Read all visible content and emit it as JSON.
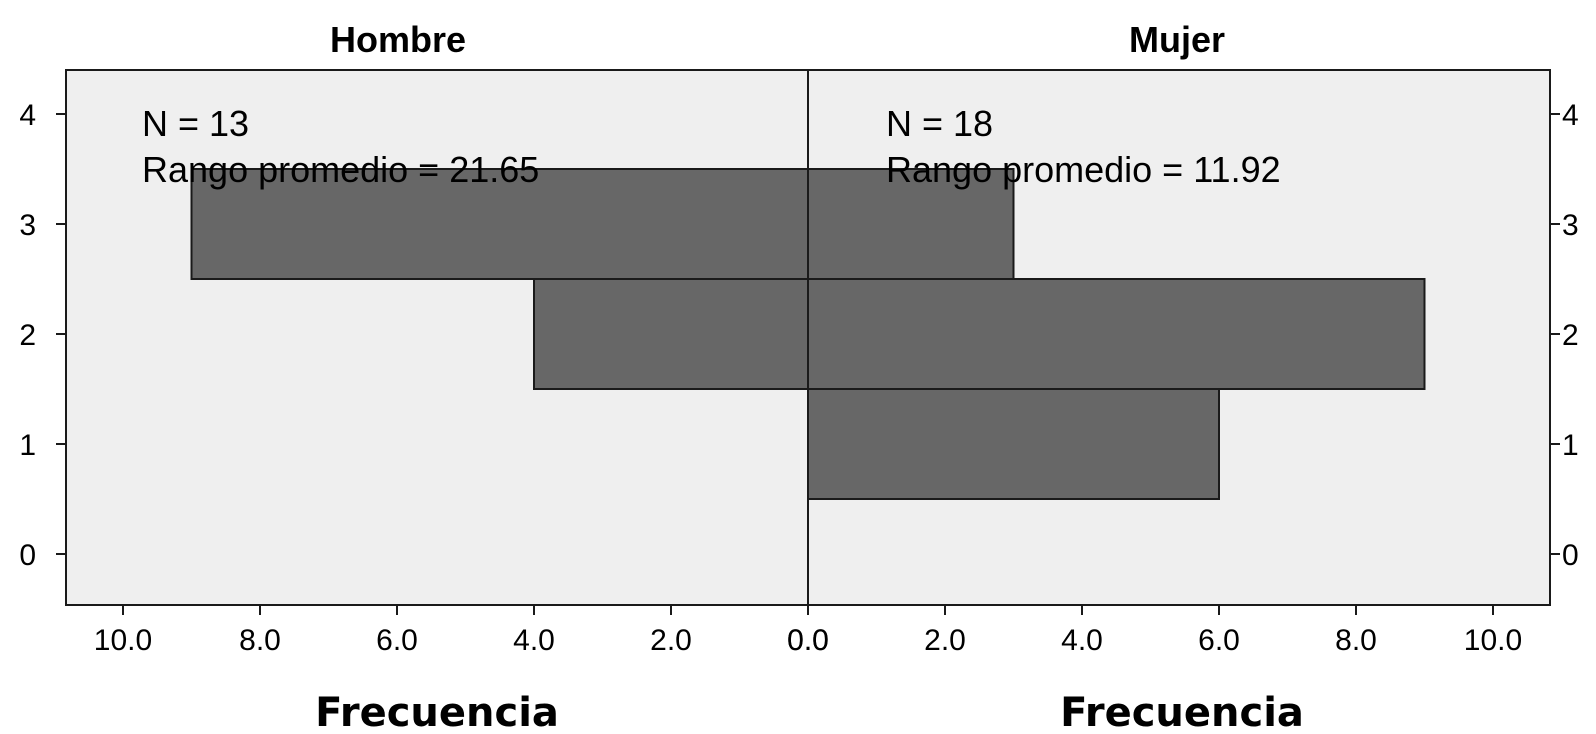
{
  "chart_data": {
    "type": "bar",
    "orientation": "horizontal-back-to-back",
    "categories": [
      "0",
      "1",
      "2",
      "3",
      "4"
    ],
    "panels": [
      {
        "title": "Hombre",
        "xlabel": "Frecuencia",
        "direction": "left",
        "xlim": [
          0,
          10
        ],
        "xticks": [
          "0.0",
          "2.0",
          "4.0",
          "6.0",
          "8.0",
          "10.0"
        ],
        "bars": [
          {
            "y": 1,
            "value": 0
          },
          {
            "y": 2,
            "value": 4
          },
          {
            "y": 3,
            "value": 9
          }
        ],
        "annotation": [
          "N = 13",
          "Rango promedio = 21.65"
        ]
      },
      {
        "title": "Mujer",
        "xlabel": "Frecuencia",
        "direction": "right",
        "xlim": [
          0,
          10
        ],
        "xticks": [
          "0.0",
          "2.0",
          "4.0",
          "6.0",
          "8.0",
          "10.0"
        ],
        "bars": [
          {
            "y": 1,
            "value": 6
          },
          {
            "y": 2,
            "value": 9
          },
          {
            "y": 3,
            "value": 3
          }
        ],
        "annotation": [
          "N = 18",
          "Rango promedio = 11.92"
        ]
      }
    ],
    "yticks": [
      "0",
      "1",
      "2",
      "3",
      "4"
    ],
    "ylim": [
      -0.45,
      4.3
    ],
    "grid": false,
    "colors": {
      "bar": "#676767",
      "background": "#efefef",
      "edge": "#1a1a1a"
    }
  }
}
